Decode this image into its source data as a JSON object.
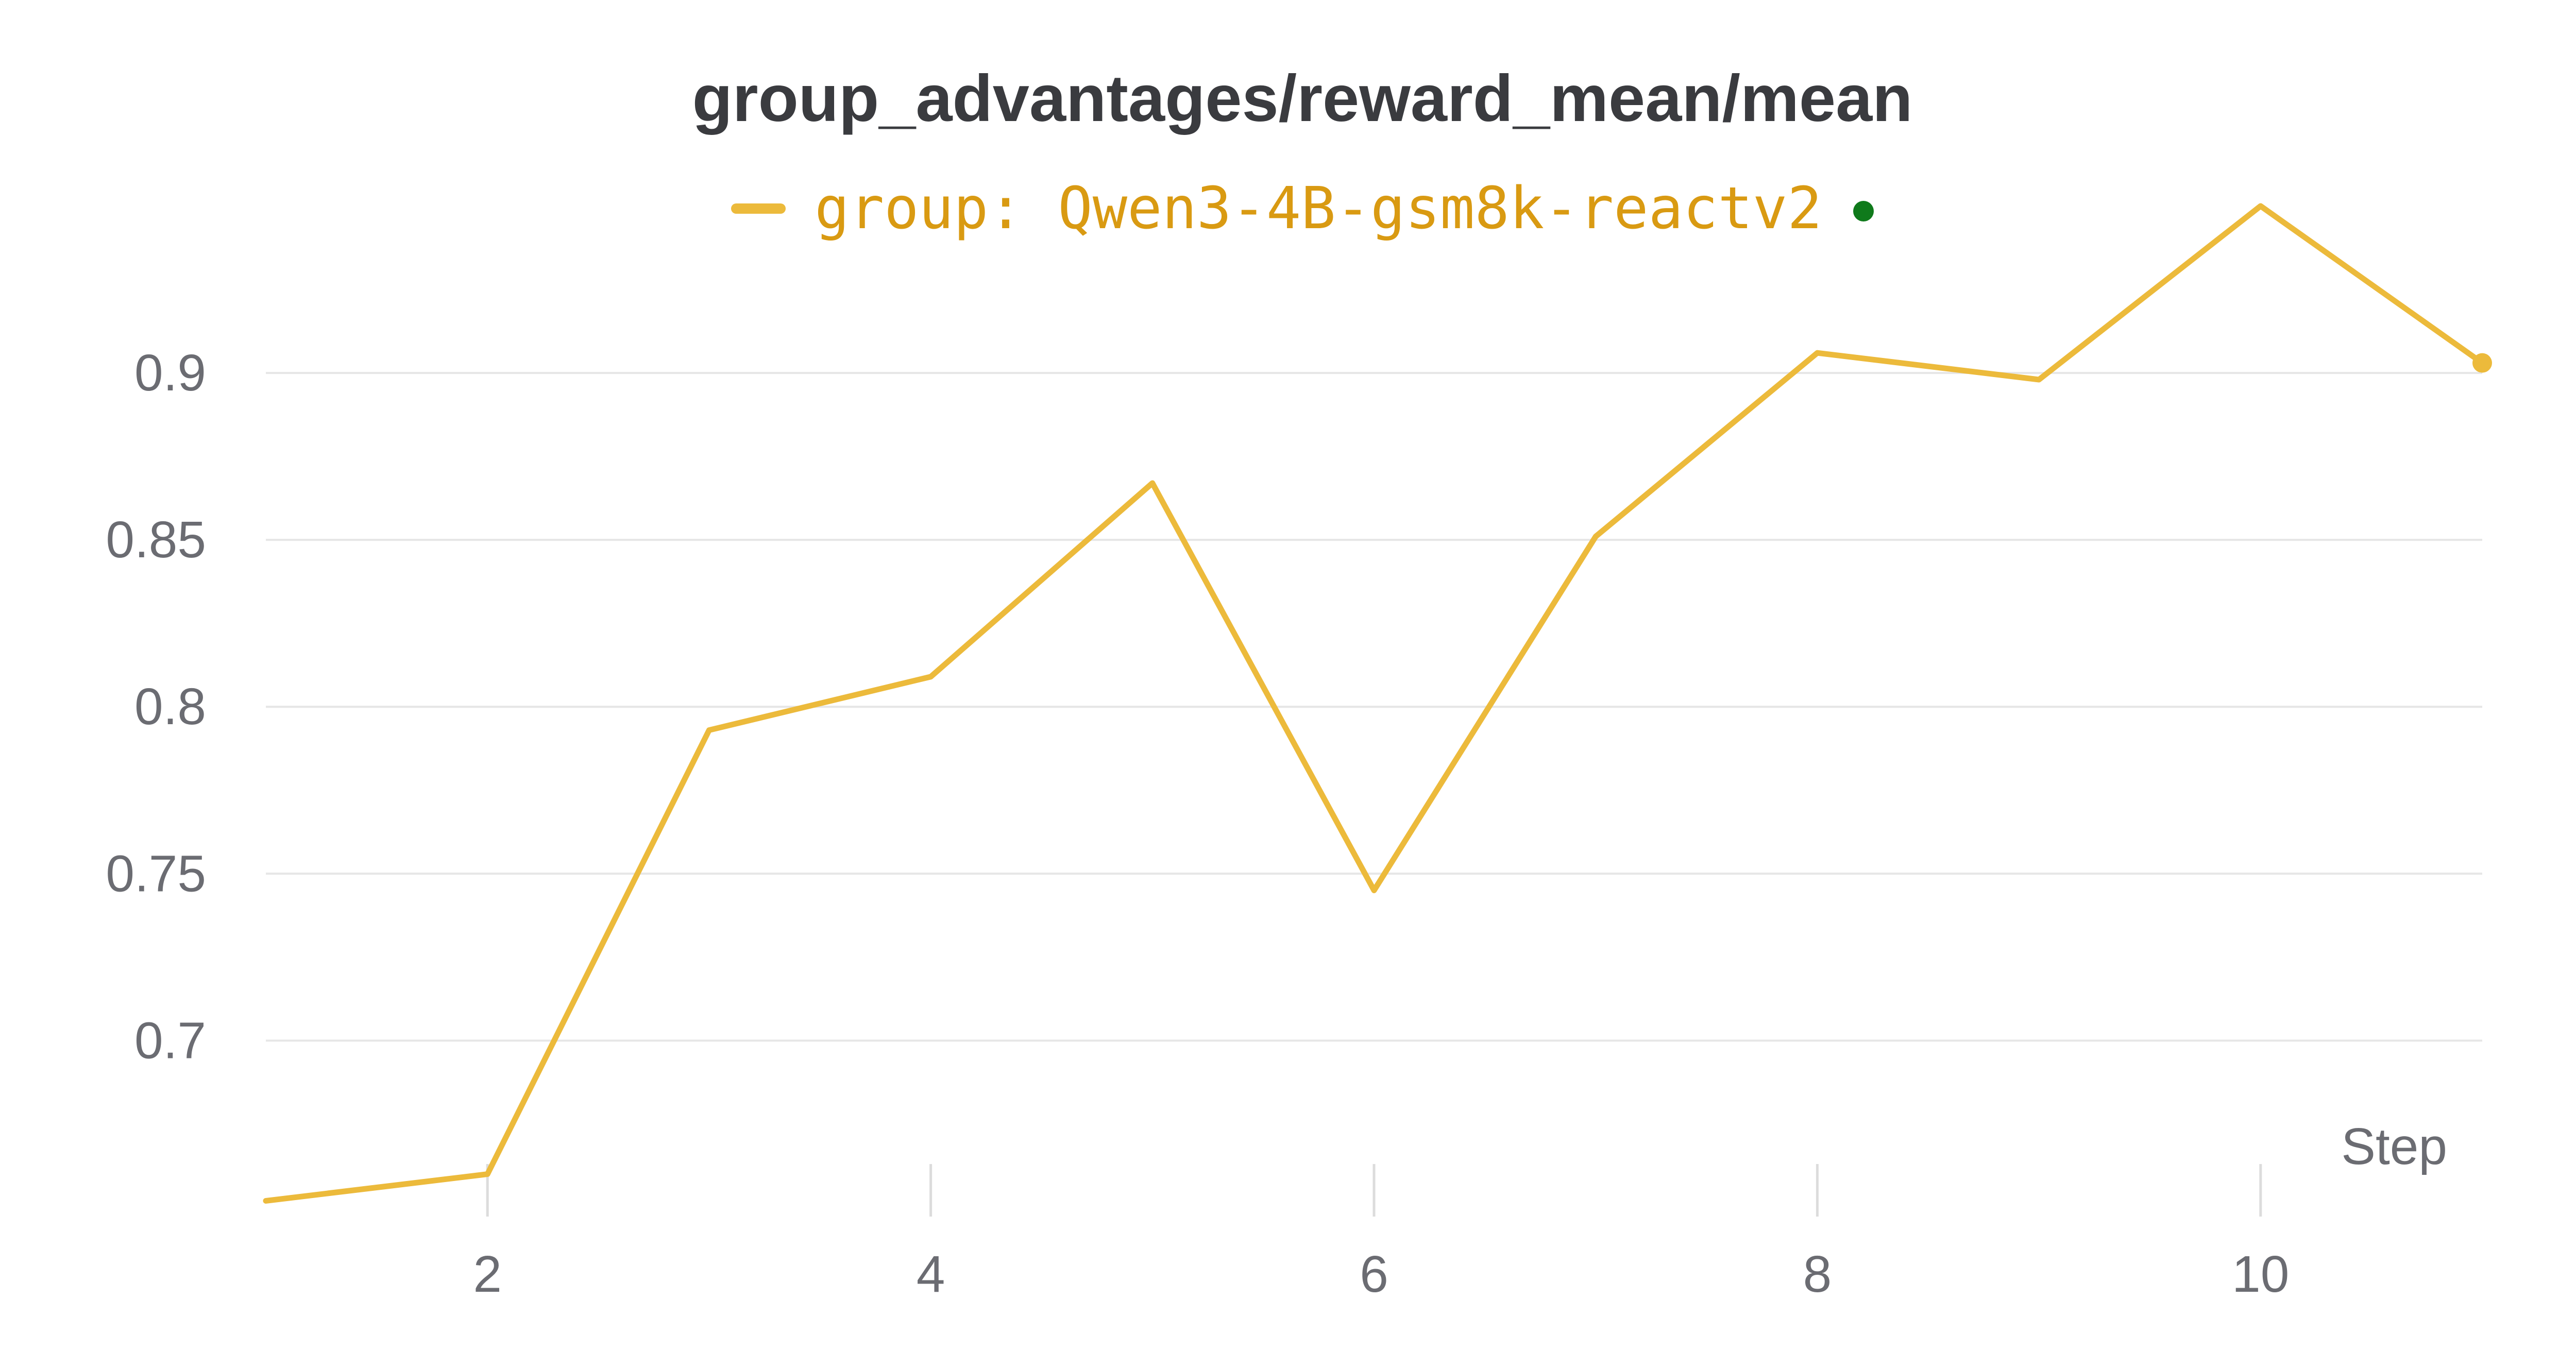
{
  "chart_data": {
    "type": "line",
    "title": "group_advantages/reward_mean/mean",
    "xlabel": "Step",
    "ylabel": "",
    "x": [
      1,
      2,
      3,
      4,
      5,
      6,
      7,
      8,
      9,
      10,
      11
    ],
    "series": [
      {
        "name": "group: Qwen3-4B-gsm8k-reactv2",
        "values": [
          0.652,
          0.66,
          0.793,
          0.809,
          0.867,
          0.745,
          0.851,
          0.906,
          0.898,
          0.95,
          0.903
        ]
      }
    ],
    "xticks": [
      "2",
      "4",
      "6",
      "8",
      "10"
    ],
    "yticks": [
      "0.7",
      "0.75",
      "0.8",
      "0.85",
      "0.9"
    ],
    "xlim": [
      1,
      11
    ],
    "ylim": [
      0.655,
      0.95
    ],
    "grid": "horizontal",
    "legend_position": "top-center",
    "colors": {
      "series": "#ecba3b",
      "legend_text": "#d99a12",
      "status_dot": "#0f7a1b",
      "title": "#3a3b3f",
      "axis_text": "#6b6c72",
      "grid": "#e6e6e6"
    }
  }
}
